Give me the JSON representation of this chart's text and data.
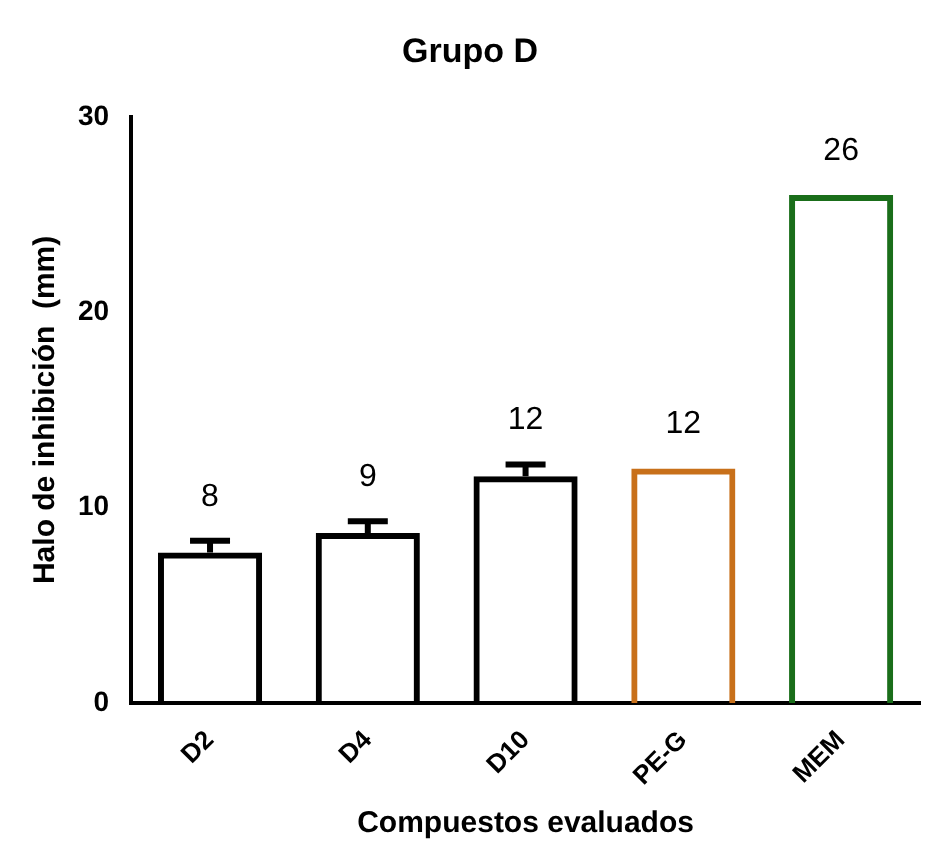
{
  "chart_data": {
    "type": "bar",
    "title": "Grupo D",
    "xlabel": "Compuestos evaluados",
    "ylabel": "Halo de inhibición  (mm)",
    "categories": [
      "D2",
      "D4",
      "D10",
      "PE-G",
      "MEM"
    ],
    "values": [
      7.7,
      8.7,
      11.6,
      12.0,
      26.0
    ],
    "colors": [
      "#000000",
      "#000000",
      "#000000",
      "#c8701a",
      "#1a6e1a"
    ],
    "errors": [
      0.6,
      0.6,
      0.6,
      null,
      null
    ],
    "value_labels": [
      "8",
      "9",
      "12",
      "12",
      "26"
    ],
    "ylim": [
      0,
      30
    ],
    "yticks": [
      0,
      10,
      20,
      30
    ],
    "grid": false,
    "legend": false
  }
}
